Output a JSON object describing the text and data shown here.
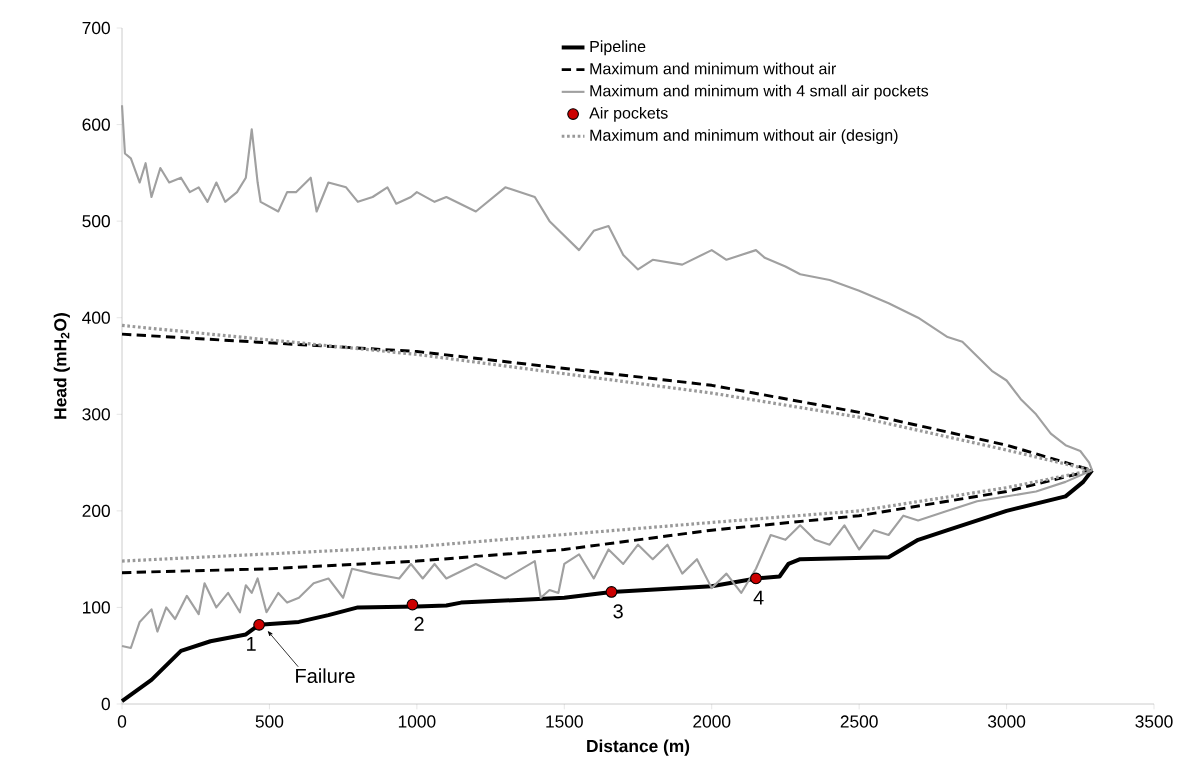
{
  "chart_data": {
    "type": "line",
    "xlabel": "Distance (m)",
    "ylabel": "Head (mH$_{2}$O)",
    "xlim": [
      0,
      3500
    ],
    "xticks": [
      0,
      500,
      1000,
      1500,
      2000,
      2500,
      3000,
      3500
    ],
    "ylim": [
      0,
      700
    ],
    "yticks": [
      0,
      100,
      200,
      300,
      400,
      500,
      600,
      700
    ],
    "grid": false,
    "legend": "top",
    "series": [
      {
        "name": "Pipeline",
        "color": "#000000",
        "line_style": "solid",
        "marker": "none",
        "x": [
          0,
          100,
          150,
          200,
          300,
          420,
          465,
          600,
          700,
          800,
          1000,
          1100,
          1150,
          1500,
          1660,
          2000,
          2150,
          2230,
          2260,
          2300,
          2600,
          2700,
          2800,
          3000,
          3200,
          3260,
          3290
        ],
        "values": [
          3,
          25,
          40,
          55,
          65,
          72,
          82,
          85,
          92,
          100,
          101,
          102,
          105,
          110,
          116,
          122,
          130,
          132,
          145,
          150,
          152,
          170,
          180,
          200,
          215,
          230,
          242
        ]
      },
      {
        "name": "Maximum and minimum without air",
        "color": "#000000",
        "line_style": "dashed",
        "marker": "none",
        "x": [
          0,
          1000,
          2000,
          2500,
          3000,
          3290
        ],
        "values": [
          383,
          365,
          330,
          302,
          268,
          242
        ]
      },
      {
        "color": "#000000",
        "line_style": "dashed",
        "marker": "none",
        "x": [
          0,
          500,
          1000,
          1500,
          2000,
          2500,
          3000,
          3290
        ],
        "values": [
          136,
          140,
          148,
          160,
          180,
          195,
          220,
          242
        ]
      },
      {
        "name": "Maximum and minimum with 4 small air pockets",
        "color": "#a0a0a0",
        "line_style": "solid",
        "marker": "none",
        "x": [
          0,
          10,
          30,
          60,
          80,
          100,
          130,
          160,
          200,
          230,
          260,
          290,
          320,
          350,
          390,
          420,
          440,
          460,
          470,
          530,
          560,
          590,
          640,
          660,
          700,
          760,
          800,
          850,
          900,
          930,
          980,
          1000,
          1060,
          1100,
          1200,
          1300,
          1400,
          1450,
          1500,
          1550,
          1600,
          1650,
          1700,
          1750,
          1800,
          1900,
          2000,
          2050,
          2150,
          2180,
          2250,
          2300,
          2400,
          2500,
          2600,
          2700,
          2800,
          2850,
          2900,
          2950,
          3000,
          3050,
          3100,
          3150,
          3200,
          3250,
          3280,
          3290
        ],
        "values": [
          620,
          570,
          565,
          540,
          560,
          525,
          555,
          540,
          545,
          530,
          535,
          520,
          540,
          520,
          530,
          545,
          595,
          540,
          520,
          510,
          530,
          530,
          545,
          510,
          540,
          535,
          520,
          525,
          535,
          518,
          525,
          530,
          520,
          525,
          510,
          535,
          525,
          500,
          485,
          470,
          490,
          495,
          465,
          450,
          460,
          455,
          470,
          460,
          470,
          462,
          453,
          445,
          439,
          428,
          415,
          400,
          380,
          375,
          360,
          345,
          335,
          315,
          300,
          280,
          268,
          262,
          250,
          242
        ]
      },
      {
        "color": "#a0a0a0",
        "line_style": "solid",
        "marker": "none",
        "x": [
          0,
          30,
          60,
          100,
          120,
          150,
          180,
          220,
          260,
          280,
          320,
          360,
          400,
          420,
          440,
          460,
          490,
          530,
          560,
          600,
          650,
          700,
          750,
          780,
          850,
          940,
          980,
          1020,
          1060,
          1100,
          1200,
          1300,
          1400,
          1420,
          1450,
          1480,
          1500,
          1550,
          1600,
          1650,
          1700,
          1750,
          1800,
          1850,
          1900,
          1950,
          2000,
          2050,
          2100,
          2150,
          2200,
          2250,
          2300,
          2350,
          2400,
          2450,
          2500,
          2550,
          2600,
          2650,
          2700,
          2800,
          2900,
          3000,
          3100,
          3200,
          3290
        ],
        "values": [
          60,
          58,
          85,
          98,
          75,
          100,
          88,
          112,
          93,
          125,
          100,
          115,
          95,
          123,
          115,
          130,
          95,
          115,
          105,
          110,
          125,
          130,
          110,
          140,
          135,
          130,
          145,
          130,
          145,
          130,
          145,
          130,
          148,
          110,
          118,
          115,
          145,
          155,
          130,
          160,
          145,
          165,
          150,
          165,
          135,
          150,
          120,
          135,
          115,
          140,
          175,
          170,
          185,
          170,
          165,
          185,
          160,
          180,
          175,
          195,
          190,
          200,
          210,
          215,
          220,
          230,
          242
        ]
      },
      {
        "name": "Air pockets",
        "type": "scatter",
        "color": "#cc0000",
        "marker": "circle",
        "x": [
          465,
          985,
          1660,
          2150
        ],
        "values": [
          82,
          103,
          116,
          130
        ]
      },
      {
        "name": "Maximum and minimum without air (design)",
        "color": "#999999",
        "line_style": "dotted",
        "marker": "none",
        "x": [
          0,
          1000,
          2000,
          2500,
          3000,
          3290
        ],
        "values": [
          392,
          362,
          322,
          297,
          263,
          242
        ]
      },
      {
        "color": "#999999",
        "line_style": "dotted",
        "marker": "none",
        "x": [
          0,
          1000,
          2000,
          2500,
          3000,
          3290
        ],
        "values": [
          148,
          163,
          188,
          200,
          224,
          242
        ]
      }
    ],
    "annotations": [
      {
        "text": "1",
        "x": 465,
        "y": 82
      },
      {
        "text": "2",
        "x": 985,
        "y": 103
      },
      {
        "text": "3",
        "x": 1660,
        "y": 116
      },
      {
        "text": "4",
        "x": 2150,
        "y": 130
      },
      {
        "text": "Failure",
        "x": 480,
        "y": 80
      }
    ]
  }
}
